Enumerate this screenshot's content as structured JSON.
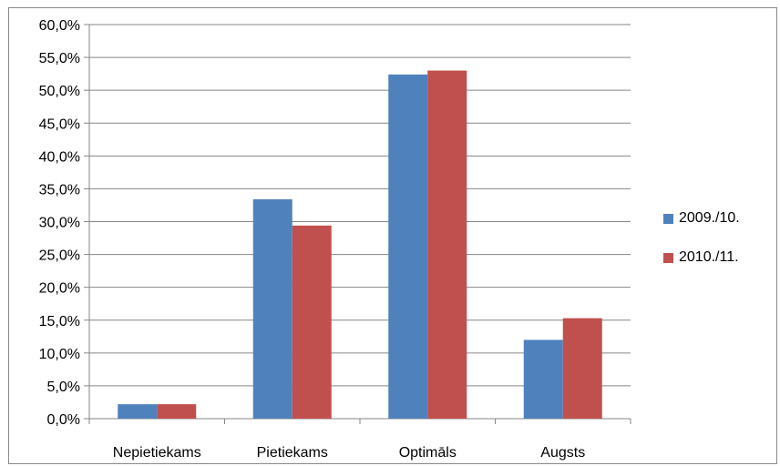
{
  "chart_data": {
    "type": "bar",
    "categories": [
      "Nepietiekams",
      "Pietiekams",
      "Optimāls",
      "Augsts"
    ],
    "series": [
      {
        "name": "2009./10.",
        "color": "#4F81BD",
        "values": [
          2.2,
          33.4,
          52.4,
          12.0
        ]
      },
      {
        "name": "2010./11.",
        "color": "#C0504D",
        "values": [
          2.2,
          29.4,
          53.0,
          15.3
        ]
      }
    ],
    "y_ticks": [
      "0,0%",
      "5,0%",
      "10,0%",
      "15,0%",
      "20,0%",
      "25,0%",
      "30,0%",
      "35,0%",
      "40,0%",
      "45,0%",
      "50,0%",
      "55,0%",
      "60,0%"
    ],
    "ylim": [
      0,
      60
    ],
    "grid": true,
    "legend_position": "right"
  }
}
